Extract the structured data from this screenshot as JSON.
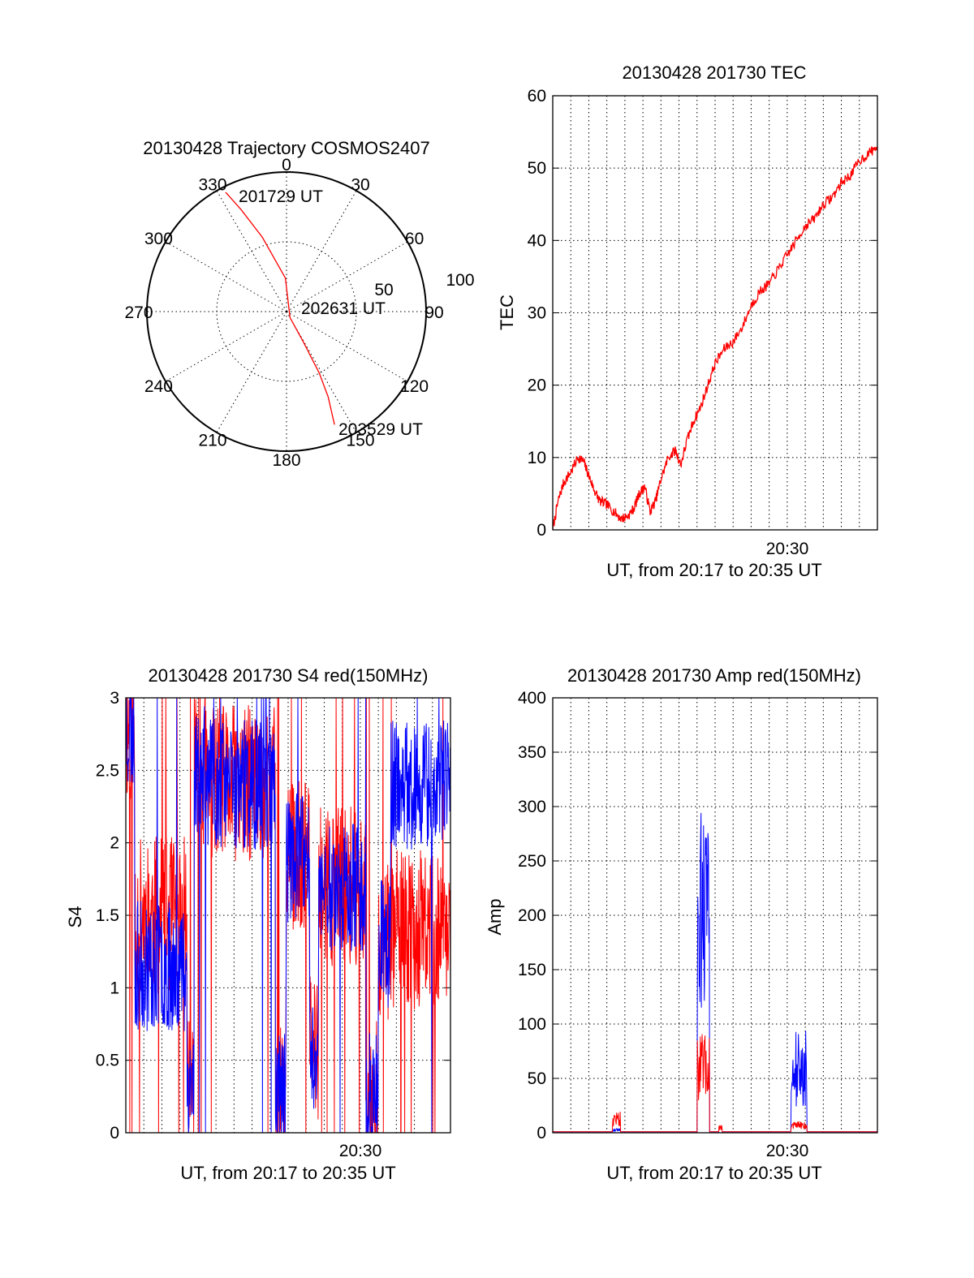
{
  "colors": {
    "red": "#ff0000",
    "blue": "#0000ff"
  },
  "chart_data": [
    {
      "id": "polar",
      "type": "polar-trajectory",
      "title": "20130428 Trajectory COSMOS2407",
      "azimuth_labels": [
        "0",
        "30",
        "60",
        "90",
        "120",
        "150",
        "180",
        "210",
        "240",
        "270",
        "300",
        "330"
      ],
      "elevation_ring_labels": [
        "50",
        "100"
      ],
      "trajectory_labels": {
        "start": "201729 UT",
        "mid": "202631 UT",
        "end": "203529 UT"
      },
      "trajectory": [
        {
          "az": 333,
          "el_dist": 96
        },
        {
          "az": 336,
          "el_dist": 80
        },
        {
          "az": 342,
          "el_dist": 56
        },
        {
          "az": 358,
          "el_dist": 24
        },
        {
          "az": 150,
          "el_dist": 5
        },
        {
          "az": 151,
          "el_dist": 25
        },
        {
          "az": 152,
          "el_dist": 50
        },
        {
          "az": 154,
          "el_dist": 68
        },
        {
          "az": 156,
          "el_dist": 80
        },
        {
          "az": 157,
          "el_dist": 88
        }
      ],
      "series_color": "red"
    },
    {
      "id": "tec",
      "type": "line",
      "title": "20130428 201730 TEC",
      "ylabel": "TEC",
      "xlabel": "UT, from 20:17 to 20:35 UT",
      "x_tick_label": "20:30",
      "xlim": [
        0,
        18
      ],
      "ylim": [
        0,
        60
      ],
      "yticks": [
        0,
        10,
        20,
        30,
        40,
        50,
        60
      ],
      "series": [
        {
          "color": "red",
          "x": [
            0,
            0.3,
            0.6,
            1.0,
            1.4,
            1.7,
            2.0,
            2.3,
            2.6,
            3.0,
            3.4,
            3.8,
            4.2,
            4.5,
            4.8,
            5.1,
            5.4,
            5.7,
            6.0,
            6.4,
            6.8,
            7.1,
            7.4,
            7.8,
            8.2,
            8.6,
            9.0,
            9.5,
            10.0,
            10.5,
            11.0,
            11.5,
            12.0,
            12.5,
            13.0,
            13.5,
            14.0,
            14.5,
            15.0,
            15.5,
            16.0,
            16.5,
            17.0,
            17.5,
            18.0
          ],
          "y": [
            0,
            4,
            6.5,
            8,
            10,
            9.5,
            7.5,
            5.5,
            4,
            3.5,
            2.5,
            1.5,
            2,
            3,
            5,
            6,
            2.5,
            4,
            7,
            10,
            11,
            9,
            12,
            15,
            17,
            20,
            23,
            25,
            26,
            28,
            31,
            33,
            34,
            36,
            38,
            40,
            42,
            43,
            45,
            46,
            48,
            49,
            51,
            52,
            53
          ]
        }
      ]
    },
    {
      "id": "s4",
      "type": "line",
      "title": "20130428 201730 S4 red(150MHz)",
      "ylabel": "S4",
      "xlabel": "UT, from 20:17 to 20:35 UT",
      "x_tick_label": "20:30",
      "xlim": [
        0,
        18
      ],
      "ylim": [
        0,
        3
      ],
      "yticks": [
        0,
        0.5,
        1,
        1.5,
        2,
        2.5,
        3
      ],
      "ytick_labels": [
        "0",
        "0.5",
        "1",
        "1.5",
        "2",
        "2.5",
        "3"
      ],
      "series": [
        {
          "color": "red"
        },
        {
          "color": "blue"
        }
      ]
    },
    {
      "id": "amp",
      "type": "line",
      "title": "20130428 201730 Amp red(150MHz)",
      "ylabel": "Amp",
      "xlabel": "UT, from 20:17 to 20:35 UT",
      "x_tick_label": "20:30",
      "xlim": [
        0,
        18
      ],
      "ylim": [
        0,
        400
      ],
      "yticks": [
        0,
        50,
        100,
        150,
        200,
        250,
        300,
        350,
        400
      ],
      "series": [
        {
          "color": "red"
        },
        {
          "color": "blue"
        }
      ]
    }
  ]
}
